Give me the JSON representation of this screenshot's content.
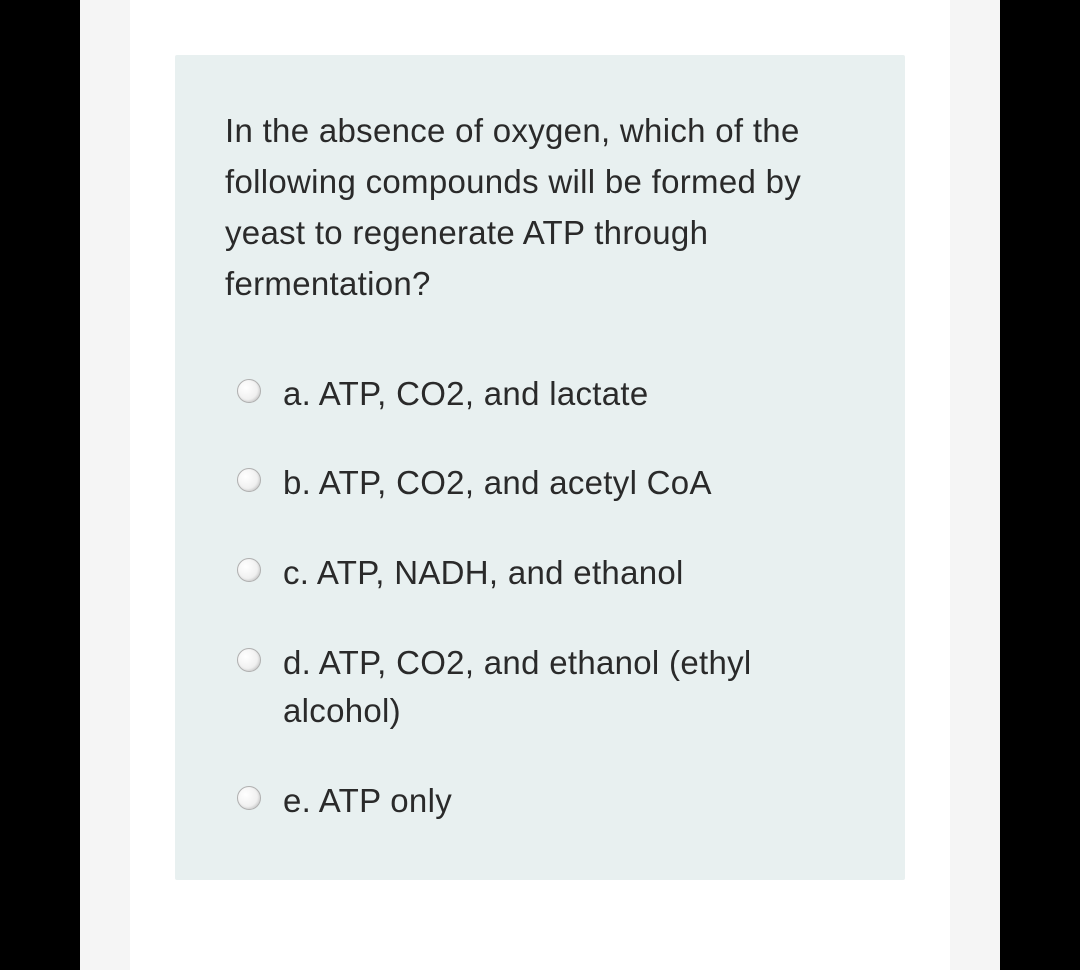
{
  "question": {
    "text": "In the absence of oxygen, which of the following compounds will be formed by yeast to regenerate ATP through fermentation?",
    "options": [
      {
        "id": "a",
        "label": "a. ATP, CO2, and lactate"
      },
      {
        "id": "b",
        "label": "b. ATP, CO2, and acetyl CoA"
      },
      {
        "id": "c",
        "label": "c. ATP, NADH, and ethanol"
      },
      {
        "id": "d",
        "label": "d. ATP, CO2, and ethanol (ethyl alcohol)"
      },
      {
        "id": "e",
        "label": "e. ATP only"
      }
    ]
  },
  "colors": {
    "page_background": "#000000",
    "outer_background": "#f5f5f5",
    "card_background": "#e8f0f0",
    "white_background": "#ffffff",
    "text_color": "#2a2a2a",
    "radio_border": "#b0b0b0"
  },
  "typography": {
    "question_fontsize": 33,
    "option_fontsize": 33,
    "line_height": 1.55
  }
}
